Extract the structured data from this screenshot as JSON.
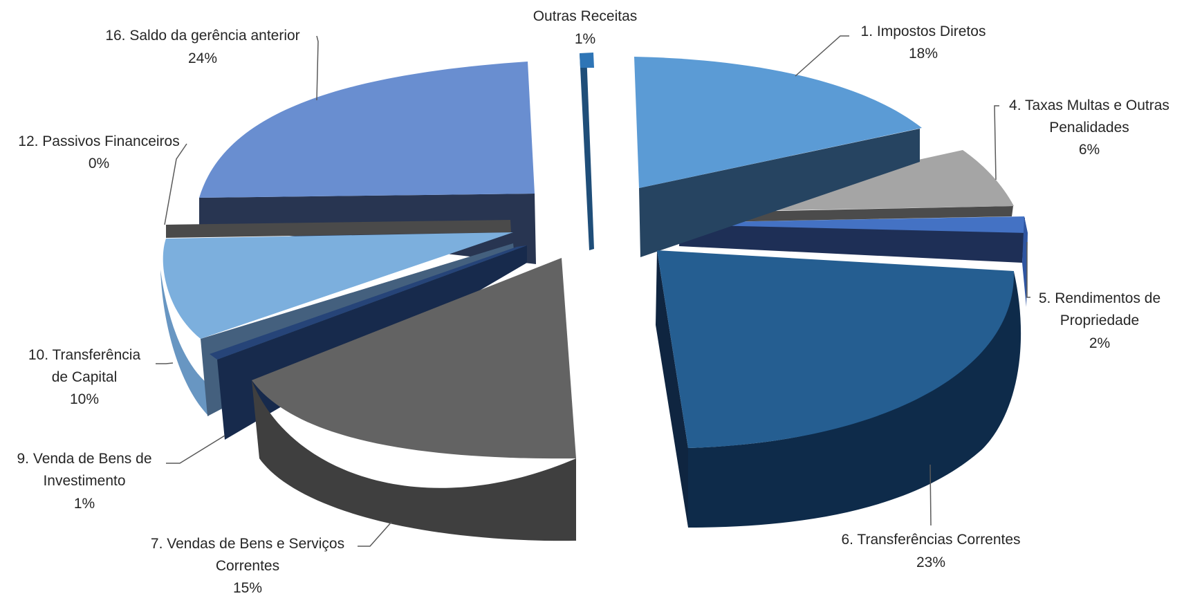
{
  "chart_data": {
    "type": "pie",
    "style": "3d-exploded",
    "title": "",
    "slices": [
      {
        "label_lines": [
          "1. Impostos Diretos"
        ],
        "percent": 18,
        "value_label": "18%",
        "color": "#5B9BD5",
        "side": "#264461"
      },
      {
        "label_lines": [
          "4. Taxas Multas e Outras",
          "Penalidades"
        ],
        "percent": 6,
        "value_label": "6%",
        "color": "#A5A5A5",
        "side": "#4B4B4B"
      },
      {
        "label_lines": [
          "5. Rendimentos de",
          "Propriedade"
        ],
        "percent": 2,
        "value_label": "2%",
        "color": "#4472C4",
        "side": "#1E2F56"
      },
      {
        "label_lines": [
          "6. Transferências Correntes"
        ],
        "percent": 23,
        "value_label": "23%",
        "color": "#255E91",
        "side": "#0F2540"
      },
      {
        "label_lines": [
          "7. Vendas de Bens e Serviços",
          "Correntes"
        ],
        "percent": 15,
        "value_label": "15%",
        "color": "#636363",
        "side": "#3C3C3C"
      },
      {
        "label_lines": [
          "9. Venda de Bens de",
          "Investimento"
        ],
        "percent": 1,
        "value_label": "1%",
        "color": "#264478",
        "side": "#172A4C"
      },
      {
        "label_lines": [
          "10. Transferência",
          "de Capital"
        ],
        "percent": 10,
        "value_label": "10%",
        "color": "#7CAFDD",
        "side": "#6896C2"
      },
      {
        "label_lines": [
          "12. Passivos Financeiros"
        ],
        "percent": 0,
        "value_label": "0%",
        "color": "#4A4A4A",
        "side": "#353535"
      },
      {
        "label_lines": [
          "16. Saldo da gerência anterior"
        ],
        "percent": 24,
        "value_label": "24%",
        "color": "#698ED0",
        "side": "#283551"
      },
      {
        "label_lines": [
          "Outras Receitas"
        ],
        "percent": 1,
        "value_label": "1%",
        "color": "#2E75B6",
        "side": "#1F4E79"
      }
    ]
  }
}
